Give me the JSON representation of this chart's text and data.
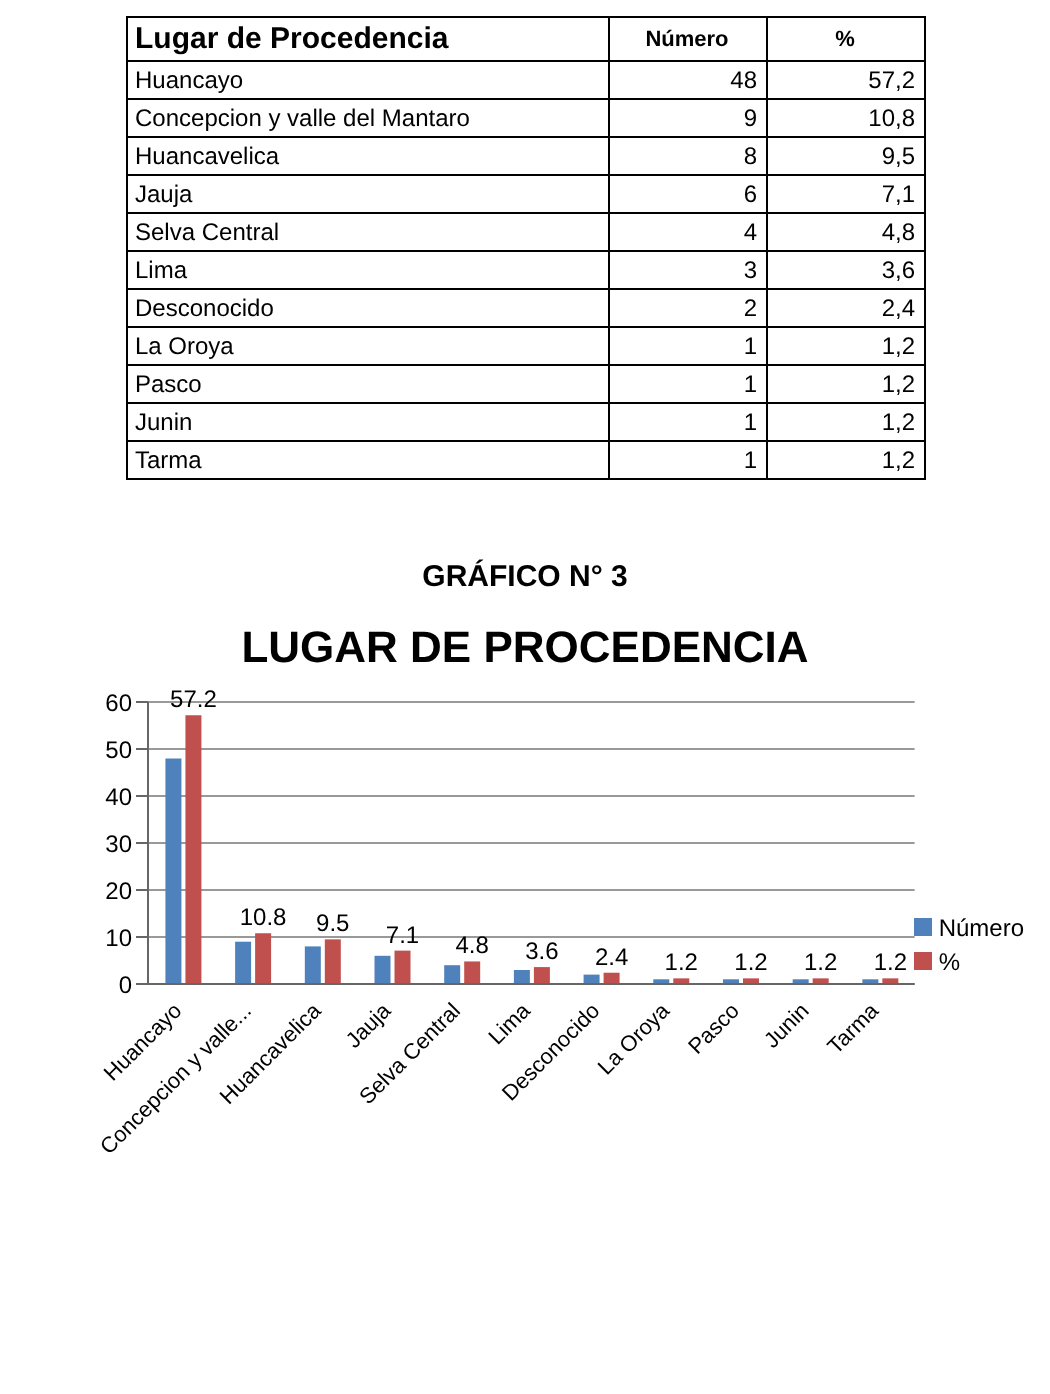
{
  "chart_data": [
    {
      "type": "other",
      "annotations": [
        "Lugar de Procedencia"
      ],
      "categories": [
        "Huancayo",
        "Concepcion y valle del Mantaro",
        "Huancavelica",
        "Jauja",
        "Selva Central",
        "Lima",
        "Desconocido",
        "La Oroya",
        "Pasco",
        "Junin",
        "Tarma"
      ],
      "series": [
        {
          "name": "Número",
          "values": [
            48,
            9,
            8,
            6,
            4,
            3,
            2,
            1,
            1,
            1,
            1
          ],
          "value_labels": [
            "48",
            "9",
            "8",
            "6",
            "4",
            "3",
            "2",
            "1",
            "1",
            "1",
            "1"
          ]
        },
        {
          "name": "%",
          "values": [
            57.2,
            10.8,
            9.5,
            7.1,
            4.8,
            3.6,
            2.4,
            1.2,
            1.2,
            1.2,
            1.2
          ],
          "value_labels": [
            "57,2",
            "10,8",
            "9,5",
            "7,1",
            "4,8",
            "3,6",
            "2,4",
            "1,2",
            "1,2",
            "1,2",
            "1,2"
          ]
        }
      ]
    },
    {
      "type": "bar",
      "subtitle": "GRÁFICO N° 3",
      "title": "LUGAR DE PROCEDENCIA",
      "categories": [
        "Huancayo",
        "Concepcion y valle...",
        "Huancavelica",
        "Jauja",
        "Selva Central",
        "Lima",
        "Desconocido",
        "La Oroya",
        "Pasco",
        "Junin",
        "Tarma"
      ],
      "series": [
        {
          "name": "Número",
          "color": "#4f81bd",
          "values": [
            48,
            9,
            8,
            6,
            4,
            3,
            2,
            1,
            1,
            1,
            1
          ]
        },
        {
          "name": "%",
          "color": "#c0504d",
          "values": [
            57.2,
            10.8,
            9.5,
            7.1,
            4.8,
            3.6,
            2.4,
            1.2,
            1.2,
            1.2,
            1.2
          ],
          "value_labels": [
            "57.2",
            "10.8",
            "9.5",
            "7.1",
            "4.8",
            "3.6",
            "2.4",
            "1.2",
            "1.2",
            "1.2",
            "1.2"
          ]
        }
      ],
      "ylim": [
        0,
        60
      ],
      "yticks": [
        0,
        10,
        20,
        30,
        40,
        50,
        60
      ],
      "grid": "y",
      "legend": "right"
    }
  ]
}
